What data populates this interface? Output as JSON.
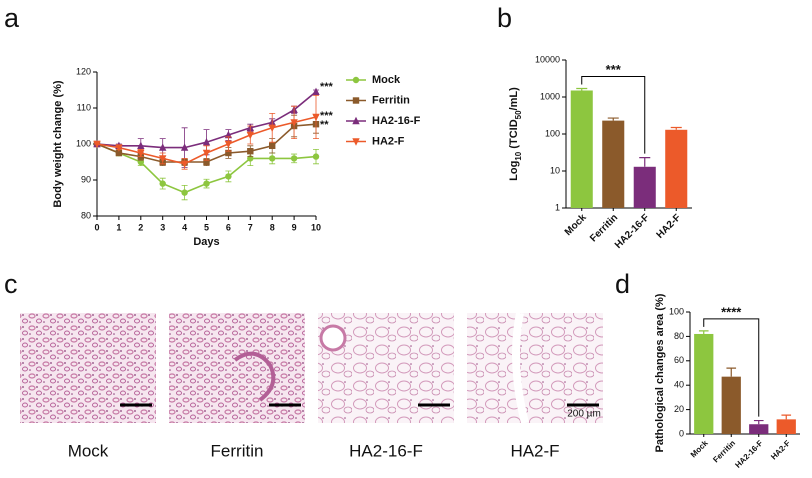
{
  "panel_labels": [
    "a",
    "b",
    "c",
    "d"
  ],
  "histology": {
    "captions": [
      "Mock",
      "Ferritin",
      "HA2-16-F",
      "HA2-F"
    ],
    "scale_bar": "200 µm"
  },
  "chart_data": [
    {
      "type": "line",
      "xlabel": "Days",
      "ylabel": "Body weight change (%)",
      "x": [
        0,
        1,
        2,
        3,
        4,
        5,
        6,
        7,
        8,
        9,
        10
      ],
      "xlim": [
        0,
        10
      ],
      "xticks": [
        0,
        1,
        2,
        3,
        4,
        5,
        6,
        7,
        8,
        9,
        10
      ],
      "ylim": [
        80,
        120
      ],
      "yticks": [
        80,
        90,
        100,
        110,
        120
      ],
      "series": [
        {
          "name": "Mock",
          "color": "#8dc63f",
          "marker": "circle",
          "values": [
            100,
            97.5,
            95,
            89,
            86.5,
            89,
            91,
            96,
            96,
            96,
            96.5
          ],
          "errors": [
            0,
            0.8,
            1,
            1.5,
            2,
            1.2,
            1.5,
            2,
            1.5,
            1.2,
            2
          ]
        },
        {
          "name": "Ferritin",
          "color": "#8b5a2b",
          "marker": "square",
          "values": [
            100,
            97.5,
            96.5,
            95,
            95,
            95,
            97.5,
            98,
            99.5,
            105,
            105.5
          ],
          "errors": [
            0,
            0.5,
            1,
            1,
            1,
            1,
            1.5,
            1.5,
            2,
            3,
            2.5
          ]
        },
        {
          "name": "HA2-16-F",
          "color": "#7b2d7b",
          "marker": "triangle",
          "values": [
            100,
            99.5,
            99.5,
            99,
            99,
            100.5,
            102.5,
            104.5,
            106,
            109.5,
            114.5
          ],
          "errors": [
            0,
            0.5,
            2,
            2.5,
            5.5,
            3.5,
            1.5,
            1,
            1,
            1,
            0.5
          ]
        },
        {
          "name": "HA2-F",
          "color": "#ec5a2a",
          "marker": "triangle-down",
          "values": [
            100,
            99,
            97.5,
            96,
            94.5,
            97.5,
            100,
            102.5,
            104.5,
            106,
            107.5
          ],
          "errors": [
            0,
            0.5,
            1,
            1.5,
            1.5,
            2,
            2,
            2.5,
            4,
            4.5,
            6
          ]
        }
      ],
      "annotations": [
        "***",
        "***",
        "**"
      ]
    },
    {
      "type": "bar",
      "ylabel_parts": [
        "Log",
        "10",
        " (TCID",
        "50",
        "/mL)"
      ],
      "log_scale": true,
      "categories": [
        "Mock",
        "Ferritin",
        "HA2-16-F",
        "HA2-F"
      ],
      "values": [
        1500,
        230,
        13,
        130
      ],
      "errors": [
        200,
        40,
        10,
        20
      ],
      "colors": [
        "#8dc63f",
        "#8b5a2b",
        "#7b2d7b",
        "#ec5a2a"
      ],
      "ylim": [
        1,
        10000
      ],
      "yticks": [
        1,
        10,
        100,
        1000,
        10000
      ],
      "annotation": "***"
    },
    {
      "type": "bar",
      "ylabel": "Pathological changes area (%)",
      "log_scale": false,
      "categories": [
        "Mock",
        "Ferritin",
        "HA2-16-F",
        "HA2-F"
      ],
      "values": [
        82,
        47,
        8,
        12
      ],
      "errors": [
        2.5,
        7,
        3,
        3.5
      ],
      "colors": [
        "#8dc63f",
        "#8b5a2b",
        "#7b2d7b",
        "#ec5a2a"
      ],
      "ylim": [
        0,
        100
      ],
      "yticks": [
        0,
        20,
        40,
        60,
        80,
        100
      ],
      "annotation": "****"
    }
  ]
}
